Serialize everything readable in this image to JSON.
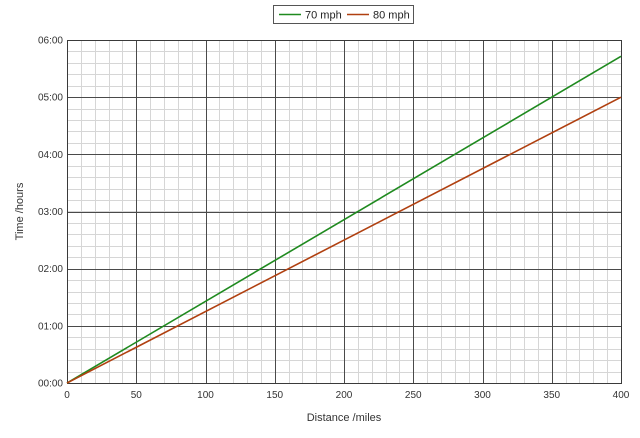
{
  "chart_data": {
    "type": "line",
    "xlabel": "Distance /miles",
    "ylabel": "Time /hours",
    "xlim": [
      0,
      400
    ],
    "ylim": [
      0,
      6
    ],
    "x_ticks": [
      0,
      50,
      100,
      150,
      200,
      250,
      300,
      350,
      400
    ],
    "x_tick_labels": [
      "0",
      "50",
      "100",
      "150",
      "200",
      "250",
      "300",
      "350",
      "400"
    ],
    "y_ticks": [
      0,
      1,
      2,
      3,
      4,
      5,
      6
    ],
    "y_tick_labels": [
      "00:00",
      "01:00",
      "02:00",
      "03:00",
      "04:00",
      "05:00",
      "06:00"
    ],
    "x_minor_step": 10,
    "y_minor_step": 0.2,
    "grid": true,
    "legend_position": "top-center",
    "series": [
      {
        "name": "70 mph",
        "color": "#1f8a1f",
        "x": [
          0,
          400
        ],
        "y": [
          0,
          5.714
        ]
      },
      {
        "name": "80 mph",
        "color": "#b04010",
        "x": [
          0,
          400
        ],
        "y": [
          0,
          5.0
        ]
      }
    ]
  }
}
